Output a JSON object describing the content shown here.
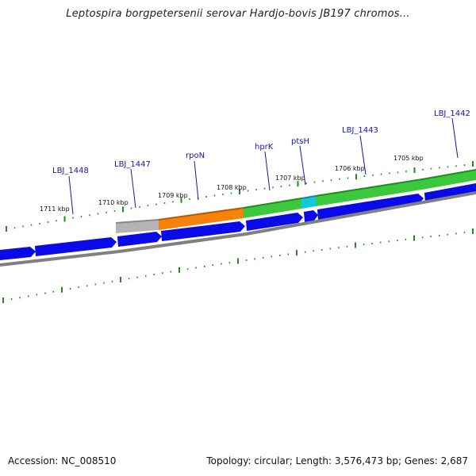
{
  "title": "Leptospira borgpetersenii serovar Hardjo-bovis JB197 chromos...",
  "footer": {
    "accession_label": "Accession:",
    "accession": "NC_008510",
    "summary": "Topology: circular; Length: 3,576,473 bp; Genes: 2,687"
  },
  "kbp_labels": [
    "1711 kbp",
    "1710 kbp",
    "1709 kbp",
    "1708 kbp",
    "1707 kbp",
    "1706 kbp",
    "1705 kbp"
  ],
  "gene_labels": [
    "LBJ_1448",
    "LBJ_1447",
    "rpoN",
    "hprK",
    "ptsH",
    "LBJ_1443",
    "LBJ_1442"
  ],
  "colors": {
    "cds_blue": "#0a0ae6",
    "gene_gray": "#b4b4b4",
    "gene_orange": "#f5820a",
    "gene_green": "#3cc83c",
    "gene_cyan": "#14c8dc",
    "tick_green": "#1e8c1e",
    "backbone": "#808080",
    "label_blue": "#1414b4"
  }
}
